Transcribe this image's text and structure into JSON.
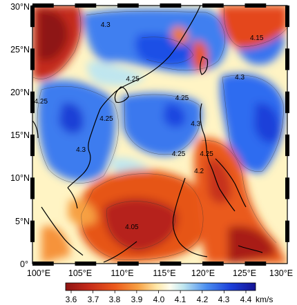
{
  "map": {
    "lat_labels": [
      "30°N",
      "25°N",
      "20°N",
      "15°N",
      "10°N",
      "5°N",
      "0°"
    ],
    "lon_labels": [
      "100°E",
      "105°E",
      "110°E",
      "115°E",
      "120°E",
      "125°E",
      "130°E"
    ],
    "extent": {
      "lon_min": 100,
      "lon_max": 130,
      "lat_min": 0,
      "lat_max": 30
    },
    "contour_labels": [
      {
        "text": "4.3",
        "lon": 108.6,
        "lat": 27.5
      },
      {
        "text": "4.25",
        "lon": 111.8,
        "lat": 21.2
      },
      {
        "text": "4.25",
        "lon": 101.0,
        "lat": 18.6
      },
      {
        "text": "4.25",
        "lon": 108.7,
        "lat": 16.6
      },
      {
        "text": "4.25",
        "lon": 117.6,
        "lat": 19.0
      },
      {
        "text": "4.25",
        "lon": 120.5,
        "lat": 12.5
      },
      {
        "text": "4.25",
        "lon": 117.2,
        "lat": 12.5
      },
      {
        "text": "4.3",
        "lon": 105.7,
        "lat": 13.0
      },
      {
        "text": "4.15",
        "lon": 126.4,
        "lat": 26.0
      },
      {
        "text": "4.3",
        "lon": 124.4,
        "lat": 21.4
      },
      {
        "text": "4.3",
        "lon": 119.2,
        "lat": 16.0
      },
      {
        "text": "4.2",
        "lon": 119.6,
        "lat": 10.5
      },
      {
        "text": "4.05",
        "lon": 111.7,
        "lat": 4.0
      }
    ]
  },
  "colorbar": {
    "labels": [
      "3.6",
      "3.7",
      "3.8",
      "3.9",
      "4.0",
      "4.1",
      "4.2",
      "4.3",
      "4.4"
    ],
    "unit": "km/s",
    "min": 3.6,
    "max": 4.4,
    "colors": [
      "#ad1f1c",
      "#db3a16",
      "#f07a22",
      "#ffc47a",
      "#fffbd8",
      "#bfe6ef",
      "#5f9cef",
      "#1b50e6",
      "#17149a"
    ]
  }
}
